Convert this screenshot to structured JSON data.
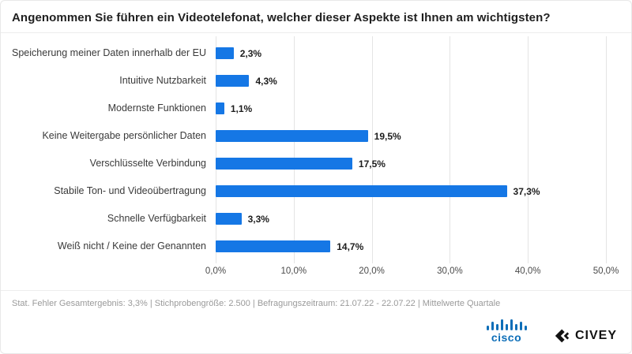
{
  "title": "Angenommen Sie führen ein Videotelefonat, welcher dieser Aspekte ist Ihnen am wichtigsten?",
  "chart_data": {
    "type": "bar",
    "orientation": "horizontal",
    "title": "Angenommen Sie führen ein Videotelefonat, welcher dieser Aspekte ist Ihnen am wichtigsten?",
    "categories": [
      "Speicherung meiner Daten innerhalb der EU",
      "Intuitive Nutzbarkeit",
      "Modernste Funktionen",
      "Keine Weitergabe persönlicher Daten",
      "Verschlüsselte Verbindung",
      "Stabile Ton- und Videoübertragung",
      "Schnelle Verfügbarkeit",
      "Weiß nicht / Keine der Genannten"
    ],
    "values": [
      2.3,
      4.3,
      1.1,
      19.5,
      17.5,
      37.3,
      3.3,
      14.7
    ],
    "value_labels": [
      "2,3%",
      "4,3%",
      "1,1%",
      "19,5%",
      "17,5%",
      "37,3%",
      "3,3%",
      "14,7%"
    ],
    "xlim": [
      0,
      50
    ],
    "x_ticks": [
      {
        "value": 0,
        "label": "0,0%"
      },
      {
        "value": 10,
        "label": "10,0%"
      },
      {
        "value": 20,
        "label": "20,0%"
      },
      {
        "value": 30,
        "label": "30,0%"
      },
      {
        "value": 40,
        "label": "40,0%"
      },
      {
        "value": 50,
        "label": "50,0%"
      }
    ],
    "grid": true,
    "legend": "none",
    "bar_color": "#1577e5"
  },
  "footer": {
    "note": "Stat. Fehler Gesamtergebnis: 3,3% | Stichprobengröße: 2.500 | Befragungszeitraum: 21.07.22 - 22.07.22 | Mittelwerte Quartale"
  },
  "logos": {
    "cisco_label": "cisco",
    "cisco_color": "#0d6eb8",
    "civey_label": "CIVEY",
    "civey_color": "#121212"
  }
}
